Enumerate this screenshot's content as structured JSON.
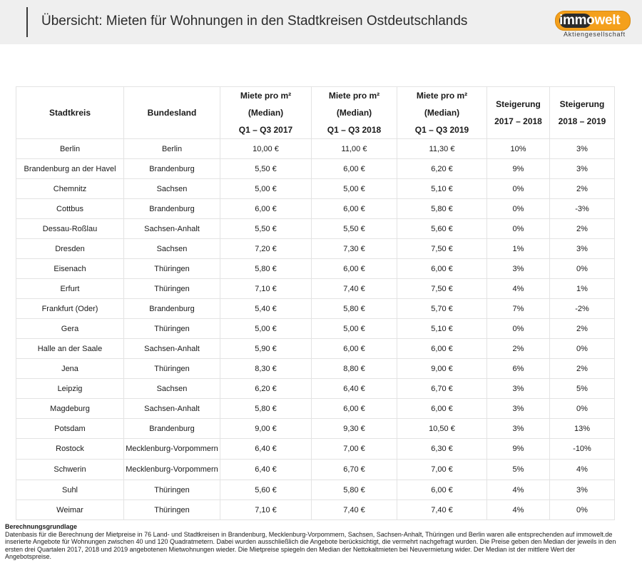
{
  "header": {
    "title": "Übersicht: Mieten für Wohnungen in den Stadtkreisen Ostdeutschlands",
    "logo_text": "immowelt",
    "logo_sub": "Aktiengesellschaft",
    "brand_color": "#f4a01c"
  },
  "table": {
    "columns": [
      {
        "lines": [
          "Stadtkreis"
        ]
      },
      {
        "lines": [
          "Bundesland"
        ]
      },
      {
        "lines": [
          "Miete pro m²",
          "(Median)",
          "Q1 – Q3 2017"
        ]
      },
      {
        "lines": [
          "Miete pro m²",
          "(Median)",
          "Q1 – Q3 2018"
        ]
      },
      {
        "lines": [
          "Miete pro m²",
          "(Median)",
          "Q1 – Q3 2019"
        ]
      },
      {
        "lines": [
          "Steigerung",
          "2017 – 2018"
        ]
      },
      {
        "lines": [
          "Steigerung",
          "2018 – 2019"
        ]
      }
    ],
    "rows": [
      [
        "Berlin",
        "Berlin",
        "10,00 €",
        "11,00 €",
        "11,30 €",
        "10%",
        "3%"
      ],
      [
        "Brandenburg an der Havel",
        "Brandenburg",
        "5,50 €",
        "6,00 €",
        "6,20 €",
        "9%",
        "3%"
      ],
      [
        "Chemnitz",
        "Sachsen",
        "5,00 €",
        "5,00 €",
        "5,10 €",
        "0%",
        "2%"
      ],
      [
        "Cottbus",
        "Brandenburg",
        "6,00 €",
        "6,00 €",
        "5,80 €",
        "0%",
        "-3%"
      ],
      [
        "Dessau-Roßlau",
        "Sachsen-Anhalt",
        "5,50 €",
        "5,50 €",
        "5,60 €",
        "0%",
        "2%"
      ],
      [
        "Dresden",
        "Sachsen",
        "7,20 €",
        "7,30 €",
        "7,50 €",
        "1%",
        "3%"
      ],
      [
        "Eisenach",
        "Thüringen",
        "5,80 €",
        "6,00 €",
        "6,00 €",
        "3%",
        "0%"
      ],
      [
        "Erfurt",
        "Thüringen",
        "7,10 €",
        "7,40 €",
        "7,50 €",
        "4%",
        "1%"
      ],
      [
        "Frankfurt (Oder)",
        "Brandenburg",
        "5,40 €",
        "5,80 €",
        "5,70 €",
        "7%",
        "-2%"
      ],
      [
        "Gera",
        "Thüringen",
        "5,00 €",
        "5,00 €",
        "5,10 €",
        "0%",
        "2%"
      ],
      [
        "Halle an der Saale",
        "Sachsen-Anhalt",
        "5,90 €",
        "6,00 €",
        "6,00 €",
        "2%",
        "0%"
      ],
      [
        "Jena",
        "Thüringen",
        "8,30 €",
        "8,80 €",
        "9,00 €",
        "6%",
        "2%"
      ],
      [
        "Leipzig",
        "Sachsen",
        "6,20 €",
        "6,40 €",
        "6,70 €",
        "3%",
        "5%"
      ],
      [
        "Magdeburg",
        "Sachsen-Anhalt",
        "5,80 €",
        "6,00 €",
        "6,00 €",
        "3%",
        "0%"
      ],
      [
        "Potsdam",
        "Brandenburg",
        "9,00 €",
        "9,30 €",
        "10,50 €",
        "3%",
        "13%"
      ],
      [
        "Rostock",
        "Mecklenburg-Vorpommern",
        "6,40 €",
        "7,00 €",
        "6,30 €",
        "9%",
        "-10%"
      ],
      [
        "Schwerin",
        "Mecklenburg-Vorpommern",
        "6,40 €",
        "6,70 €",
        "7,00 €",
        "5%",
        "4%"
      ],
      [
        "Suhl",
        "Thüringen",
        "5,60 €",
        "5,80 €",
        "6,00 €",
        "4%",
        "3%"
      ],
      [
        "Weimar",
        "Thüringen",
        "7,10 €",
        "7,40 €",
        "7,40 €",
        "4%",
        "0%"
      ]
    ]
  },
  "notes": {
    "heading": "Berechnungsgrundlage",
    "text": "Datenbasis für die Berechnung der Mietpreise in 76 Land- und Stadtkreisen in Brandenburg, Mecklenburg-Vorpommern, Sachsen, Sachsen-Anhalt, Thüringen und Berlin waren alle entsprechenden auf immowelt.de inserierte Angebote für Wohnungen zwischen 40 und 120 Quadratmetern. Dabei wurden ausschließlich die Angebote berücksichtigt, die vermehrt nachgefragt wurden. Die Preise geben den Median der jeweils in den ersten drei Quartalen 2017, 2018 und 2019 angebotenen Mietwohnungen wieder. Die Mietpreise spiegeln den Median der Nettokaltmieten bei Neuvermietung wider. Der Median ist der mittlere Wert der Angebotspreise."
  }
}
